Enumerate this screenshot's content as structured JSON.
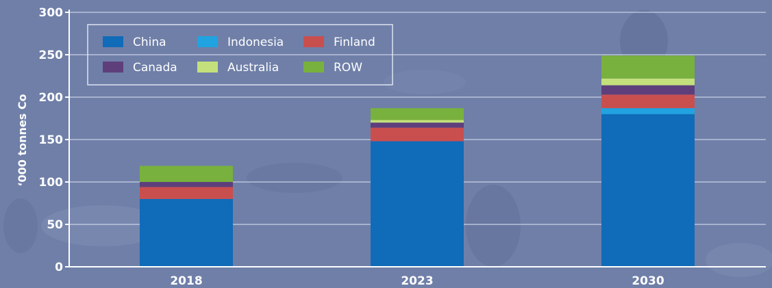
{
  "colors": {
    "background": "#6f7fa8",
    "gridline": "#c9d1e6",
    "axis": "#ffffff",
    "text": "#ffffff"
  },
  "chart_data": {
    "type": "bar",
    "stacked": true,
    "title": "",
    "xlabel": "",
    "ylabel": "‘000 tonnes Co",
    "ylim": [
      0,
      300
    ],
    "yticks": [
      0,
      50,
      100,
      150,
      200,
      250,
      300
    ],
    "grid": true,
    "legend_position": "top-left",
    "categories": [
      "2018",
      "2023",
      "2030"
    ],
    "series": [
      {
        "name": "China",
        "color": "#106bb8",
        "values": [
          80,
          148,
          180
        ]
      },
      {
        "name": "Indonesia",
        "color": "#20a3e0",
        "values": [
          0,
          0,
          7
        ]
      },
      {
        "name": "Finland",
        "color": "#c94f4f",
        "values": [
          14,
          16,
          16
        ]
      },
      {
        "name": "Canada",
        "color": "#5e3f7b",
        "values": [
          6,
          6,
          11
        ]
      },
      {
        "name": "Australia",
        "color": "#c4e07c",
        "values": [
          0,
          3,
          8
        ]
      },
      {
        "name": "ROW",
        "color": "#78b13d",
        "values": [
          19,
          14,
          27
        ]
      }
    ]
  }
}
